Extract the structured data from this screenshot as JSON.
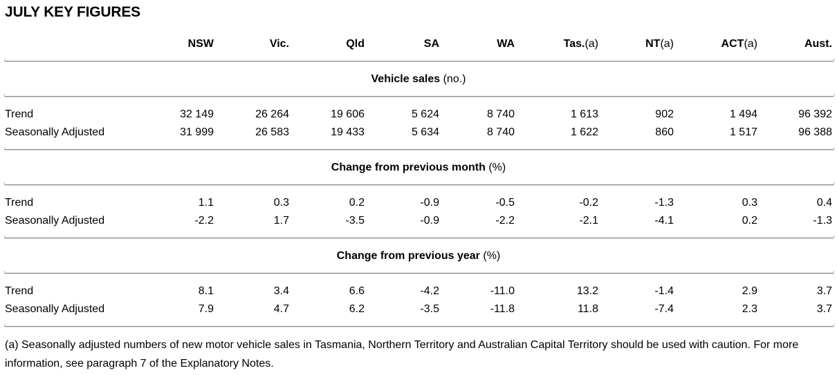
{
  "title": "JULY KEY FIGURES",
  "columns": [
    {
      "name": "NSW",
      "note": ""
    },
    {
      "name": "Vic.",
      "note": ""
    },
    {
      "name": "Qld",
      "note": ""
    },
    {
      "name": "SA",
      "note": ""
    },
    {
      "name": "WA",
      "note": ""
    },
    {
      "name": "Tas.",
      "note": "(a)"
    },
    {
      "name": "NT",
      "note": "(a)"
    },
    {
      "name": "ACT",
      "note": "(a)"
    },
    {
      "name": "Aust.",
      "note": ""
    }
  ],
  "sections": [
    {
      "title": "Vehicle sales",
      "unit": "(no.)",
      "rows": [
        {
          "label": "Trend",
          "values": [
            "32 149",
            "26 264",
            "19 606",
            "5 624",
            "8 740",
            "1 613",
            "902",
            "1 494",
            "96 392"
          ]
        },
        {
          "label": "Seasonally Adjusted",
          "values": [
            "31 999",
            "26 583",
            "19 433",
            "5 634",
            "8 740",
            "1 622",
            "860",
            "1 517",
            "96 388"
          ]
        }
      ]
    },
    {
      "title": "Change from previous month",
      "unit": "(%)",
      "rows": [
        {
          "label": "Trend",
          "values": [
            "1.1",
            "0.3",
            "0.2",
            "-0.9",
            "-0.5",
            "-0.2",
            "-1.3",
            "0.3",
            "0.4"
          ]
        },
        {
          "label": "Seasonally Adjusted",
          "values": [
            "-2.2",
            "1.7",
            "-3.5",
            "-0.9",
            "-2.2",
            "-2.1",
            "-4.1",
            "0.2",
            "-1.3"
          ]
        }
      ]
    },
    {
      "title": "Change from previous year",
      "unit": "(%)",
      "rows": [
        {
          "label": "Trend",
          "values": [
            "8.1",
            "3.4",
            "6.6",
            "-4.2",
            "-11.0",
            "13.2",
            "-1.4",
            "2.9",
            "3.7"
          ]
        },
        {
          "label": "Seasonally Adjusted",
          "values": [
            "7.9",
            "4.7",
            "6.2",
            "-3.5",
            "-11.8",
            "11.8",
            "-7.4",
            "2.3",
            "3.7"
          ]
        }
      ]
    }
  ],
  "footnote": "(a) Seasonally adjusted numbers of new motor vehicle sales in Tasmania, Northern Territory and Australian Capital Territory should be used with caution. For more information, see paragraph 7 of the Explanatory Notes."
}
